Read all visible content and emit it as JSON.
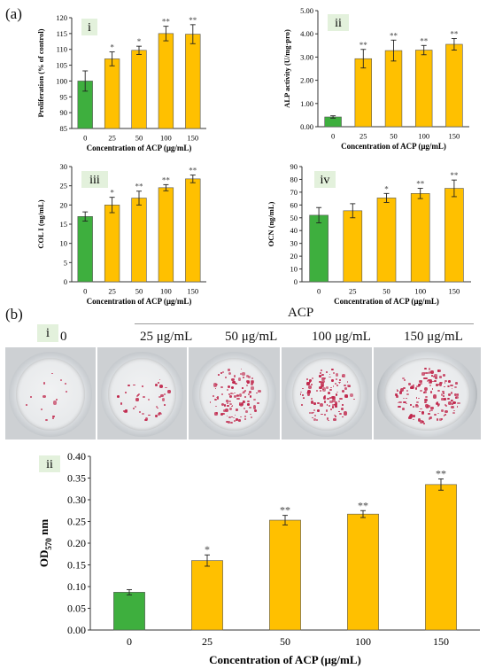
{
  "panel_labels": {
    "a": "(a)",
    "b": "(b)"
  },
  "plates": {
    "group_label": "ACP",
    "sub_label": "i",
    "columns": [
      "0",
      "25 μg/mL",
      "50 μg/mL",
      "100 μg/mL",
      "150 μg/mL"
    ],
    "colors": {
      "stain": "#c0264b",
      "background": "#cdd0d3"
    }
  },
  "chart_data": [
    {
      "type": "bar",
      "panel": "i",
      "categories": [
        "0",
        "25",
        "50",
        "100",
        "150"
      ],
      "series": [
        {
          "values": [
            100,
            107,
            109.7,
            115,
            114.8
          ],
          "errors": [
            3.2,
            2.2,
            1.3,
            2.3,
            3.0
          ]
        }
      ],
      "significance": [
        "",
        "*",
        "*",
        "**",
        "**"
      ],
      "xlabel": "Concentration of ACP (μg/mL)",
      "ylabel": "Proliferation (% of control)",
      "ylim": [
        85,
        120
      ],
      "yticks": [
        "85",
        "90",
        "95",
        "100",
        "105",
        "110",
        "115",
        "120"
      ],
      "colors": [
        "#3eaf3e",
        "#ffc000",
        "#ffc000",
        "#ffc000",
        "#ffc000"
      ]
    },
    {
      "type": "bar",
      "panel": "ii",
      "categories": [
        "0",
        "25",
        "50",
        "100",
        "150"
      ],
      "series": [
        {
          "values": [
            0.42,
            2.93,
            3.28,
            3.3,
            3.55
          ],
          "errors": [
            0.05,
            0.4,
            0.45,
            0.2,
            0.25
          ]
        }
      ],
      "significance": [
        "",
        "**",
        "**",
        "**",
        "**"
      ],
      "xlabel": "Concentration of ACP (μg/mL)",
      "ylabel": "ALP activity (U/mg·pro)",
      "ylim": [
        0,
        5
      ],
      "yticks": [
        "0.00",
        "1.00",
        "2.00",
        "3.00",
        "4.00",
        "5.00"
      ],
      "colors": [
        "#3eaf3e",
        "#ffc000",
        "#ffc000",
        "#ffc000",
        "#ffc000"
      ]
    },
    {
      "type": "bar",
      "panel": "iii",
      "categories": [
        "0",
        "25",
        "50",
        "100",
        "150"
      ],
      "series": [
        {
          "values": [
            17,
            20,
            21.8,
            24.5,
            26.8
          ],
          "errors": [
            1.2,
            2.0,
            1.8,
            0.8,
            1.0
          ]
        }
      ],
      "significance": [
        "",
        "*",
        "**",
        "**",
        "**"
      ],
      "xlabel": "Concentration of ACP (μg/mL)",
      "ylabel": "COL I (ng/mL)",
      "ylim": [
        0,
        30
      ],
      "yticks": [
        "0",
        "5",
        "10",
        "15",
        "20",
        "25",
        "30"
      ],
      "colors": [
        "#3eaf3e",
        "#ffc000",
        "#ffc000",
        "#ffc000",
        "#ffc000"
      ]
    },
    {
      "type": "bar",
      "panel": "iv",
      "categories": [
        "0",
        "25",
        "50",
        "100",
        "150"
      ],
      "series": [
        {
          "values": [
            52,
            55.5,
            65.5,
            69,
            73
          ],
          "errors": [
            6,
            5.5,
            3.5,
            4,
            6.5
          ]
        }
      ],
      "significance": [
        "",
        "",
        "*",
        "**",
        "**"
      ],
      "xlabel": "Concentration of ACP (μg/mL)",
      "ylabel": "OCN (ng/mL)",
      "ylim": [
        0,
        90
      ],
      "yticks": [
        "0",
        "10",
        "20",
        "30",
        "40",
        "50",
        "60",
        "70",
        "80",
        "90"
      ],
      "colors": [
        "#3eaf3e",
        "#ffc000",
        "#ffc000",
        "#ffc000",
        "#ffc000"
      ]
    },
    {
      "type": "bar",
      "panel": "ii",
      "categories": [
        "0",
        "25",
        "50",
        "100",
        "150"
      ],
      "series": [
        {
          "values": [
            0.087,
            0.16,
            0.253,
            0.267,
            0.335
          ],
          "errors": [
            0.006,
            0.013,
            0.011,
            0.008,
            0.013
          ]
        }
      ],
      "significance": [
        "",
        "*",
        "**",
        "**",
        "**"
      ],
      "xlabel": "Concentration of ACP (μg/mL)",
      "ylabel": "OD570 nm",
      "ylabel_main": "OD",
      "ylabel_sub": "570",
      "ylabel_tail": " nm",
      "ylim": [
        0,
        0.4
      ],
      "yticks": [
        "0.00",
        "0.05",
        "0.10",
        "0.15",
        "0.20",
        "0.25",
        "0.30",
        "0.35",
        "0.40"
      ],
      "colors": [
        "#3eaf3e",
        "#ffc000",
        "#ffc000",
        "#ffc000",
        "#ffc000"
      ]
    }
  ]
}
